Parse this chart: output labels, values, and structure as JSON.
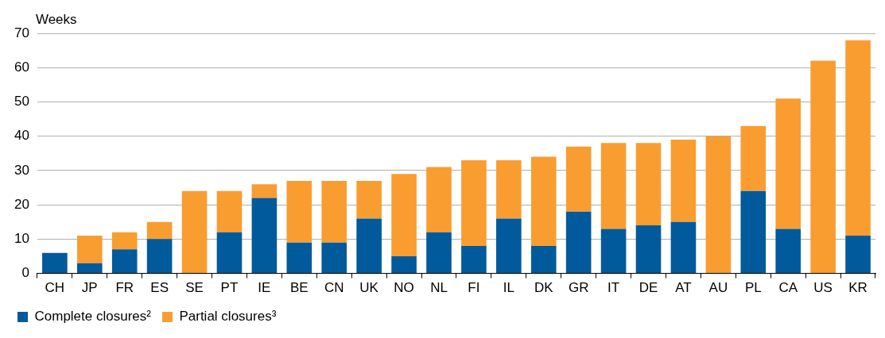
{
  "chart_data": {
    "type": "bar",
    "ylabel": "Weeks",
    "stacked": true,
    "categories": [
      "CH",
      "JP",
      "FR",
      "ES",
      "SE",
      "PT",
      "IE",
      "BE",
      "CN",
      "UK",
      "NO",
      "NL",
      "FI",
      "IL",
      "DK",
      "GR",
      "IT",
      "DE",
      "AT",
      "AU",
      "PL",
      "CA",
      "US",
      "KR"
    ],
    "series": [
      {
        "name": "Complete closures²",
        "color": "#005a9c",
        "values": [
          6,
          3,
          7,
          10,
          0,
          12,
          22,
          9,
          9,
          16,
          5,
          12,
          8,
          16,
          8,
          18,
          13,
          14,
          15,
          0,
          24,
          13,
          0,
          11
        ]
      },
      {
        "name": "Partial closures³",
        "color": "#f99d31",
        "values": [
          0,
          8,
          5,
          5,
          24,
          12,
          4,
          18,
          18,
          11,
          24,
          19,
          25,
          17,
          26,
          19,
          25,
          24,
          24,
          40,
          19,
          38,
          62,
          57
        ]
      }
    ],
    "ylim": [
      0,
      70
    ],
    "yticks": [
      0,
      10,
      20,
      30,
      40,
      50,
      60,
      70
    ],
    "grid": "y",
    "legend": "bottom left"
  }
}
